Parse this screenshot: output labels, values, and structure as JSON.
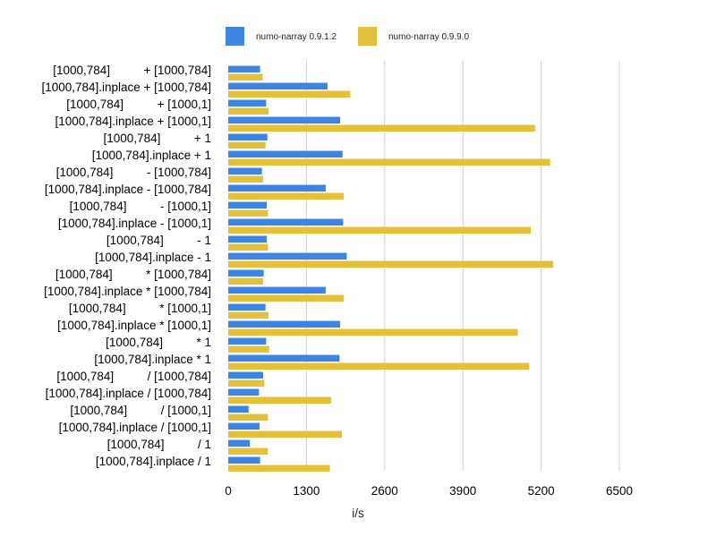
{
  "chart_data": {
    "type": "bar",
    "orientation": "horizontal",
    "xlabel": "i/s",
    "xlim": [
      0,
      6500
    ],
    "xticks": [
      0,
      1300,
      2600,
      3900,
      5200,
      6500
    ],
    "grid": true,
    "legend_position": "top",
    "categories": [
      "[1000,784]          + [1000,784]",
      "[1000,784].inplace + [1000,784]",
      "[1000,784]          + [1000,1]",
      "[1000,784].inplace + [1000,1]",
      "[1000,784]          + 1",
      "[1000,784].inplace + 1",
      "[1000,784]          - [1000,784]",
      "[1000,784].inplace - [1000,784]",
      "[1000,784]          - [1000,1]",
      "[1000,784].inplace - [1000,1]",
      "[1000,784]          - 1",
      "[1000,784].inplace - 1",
      "[1000,784]          * [1000,784]",
      "[1000,784].inplace * [1000,784]",
      "[1000,784]          * [1000,1]",
      "[1000,784].inplace * [1000,1]",
      "[1000,784]          * 1",
      "[1000,784].inplace * 1",
      "[1000,784]          / [1000,784]",
      "[1000,784].inplace / [1000,784]",
      "[1000,784]          / [1000,1]",
      "[1000,784].inplace / [1000,1]",
      "[1000,784]          / 1",
      "[1000,784].inplace / 1"
    ],
    "series": [
      {
        "name": "numo-narray 0.9.1.2",
        "color": "#3d85e3",
        "values": [
          530,
          1650,
          630,
          1860,
          650,
          1900,
          560,
          1620,
          640,
          1910,
          640,
          1970,
          590,
          1620,
          620,
          1860,
          630,
          1850,
          580,
          510,
          340,
          520,
          360,
          530
        ]
      },
      {
        "name": "numo-narray 0.9.9.0",
        "color": "#e5c13b",
        "values": [
          570,
          2030,
          670,
          5100,
          620,
          5350,
          580,
          1920,
          660,
          5030,
          660,
          5400,
          580,
          1920,
          670,
          4810,
          680,
          5000,
          600,
          1710,
          660,
          1890,
          660,
          1690
        ]
      }
    ]
  }
}
